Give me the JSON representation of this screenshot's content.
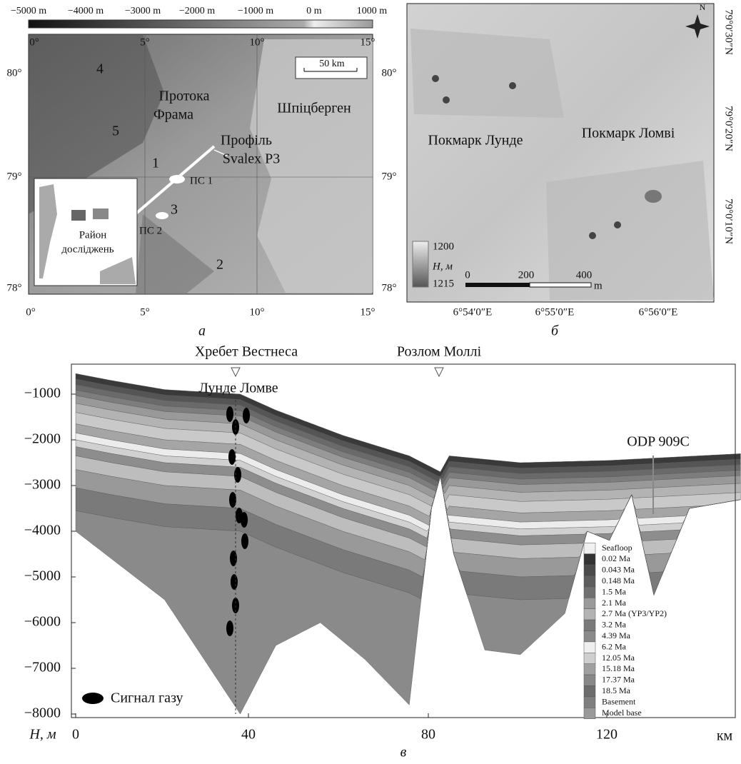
{
  "panel_a": {
    "caption": "а",
    "colorbar_labels": [
      "−5000 m",
      "−4000 m",
      "−3000 m",
      "−2000 m",
      "−1000 m",
      "0 m",
      "1000 m"
    ],
    "lon_labels": [
      "0°",
      "5°",
      "10°",
      "15°"
    ],
    "lat_labels": [
      "80°",
      "79°",
      "78°"
    ],
    "scale": "50 km",
    "numbers": [
      "4",
      "5",
      "1",
      "3",
      "2"
    ],
    "strait": [
      "Протока",
      "Фрама"
    ],
    "island": "Шпіцберген",
    "profile": [
      "Профіль",
      "Svalex P3"
    ],
    "sites": [
      "ПС 1",
      "ПС 2"
    ],
    "inset": [
      "Район",
      "досліджень"
    ]
  },
  "panel_b": {
    "caption": "б",
    "north": "N",
    "pockmarks": [
      "Покмарк Лунде",
      "Покмарк Ломві"
    ],
    "lat_labels": [
      "79°0′30″N",
      "79°0′20″N",
      "79°0′10″N"
    ],
    "lon_labels": [
      "6°54′0″E",
      "6°55′0″E",
      "6°56′0″E"
    ],
    "legend": {
      "max": "1200",
      "label": "H, м",
      "min": "1215"
    },
    "scale": [
      "0",
      "200",
      "400",
      "m"
    ]
  },
  "panel_c": {
    "caption": "в",
    "features": [
      "Хребет Вестнеса",
      "Розлом Моллі"
    ],
    "pockmarks": "Лунде Ломве",
    "well": "ODP 909C",
    "y_ticks": [
      "−1000",
      "−2000",
      "−3000",
      "−4000",
      "−5000",
      "−6000",
      "−7000",
      "−8000"
    ],
    "x_ticks": [
      "0",
      "40",
      "80",
      "120"
    ],
    "y_label": "H, м",
    "x_label": "км",
    "gas_legend": "Сигнал газу",
    "layers": [
      "Seafloop",
      "0.02 Ma",
      "0.043 Ma",
      "0.148 Ma",
      "1.5 Ma",
      "2.1 Ma",
      "2.7 Ma (YP3/YP2)",
      "3.2 Ma",
      "4.39 Ma",
      "6.2 Ma",
      "12.05 Ma",
      "15.18 Ma",
      "17.37 Ma",
      "18.5 Ma",
      "Basement",
      "Model base"
    ]
  }
}
